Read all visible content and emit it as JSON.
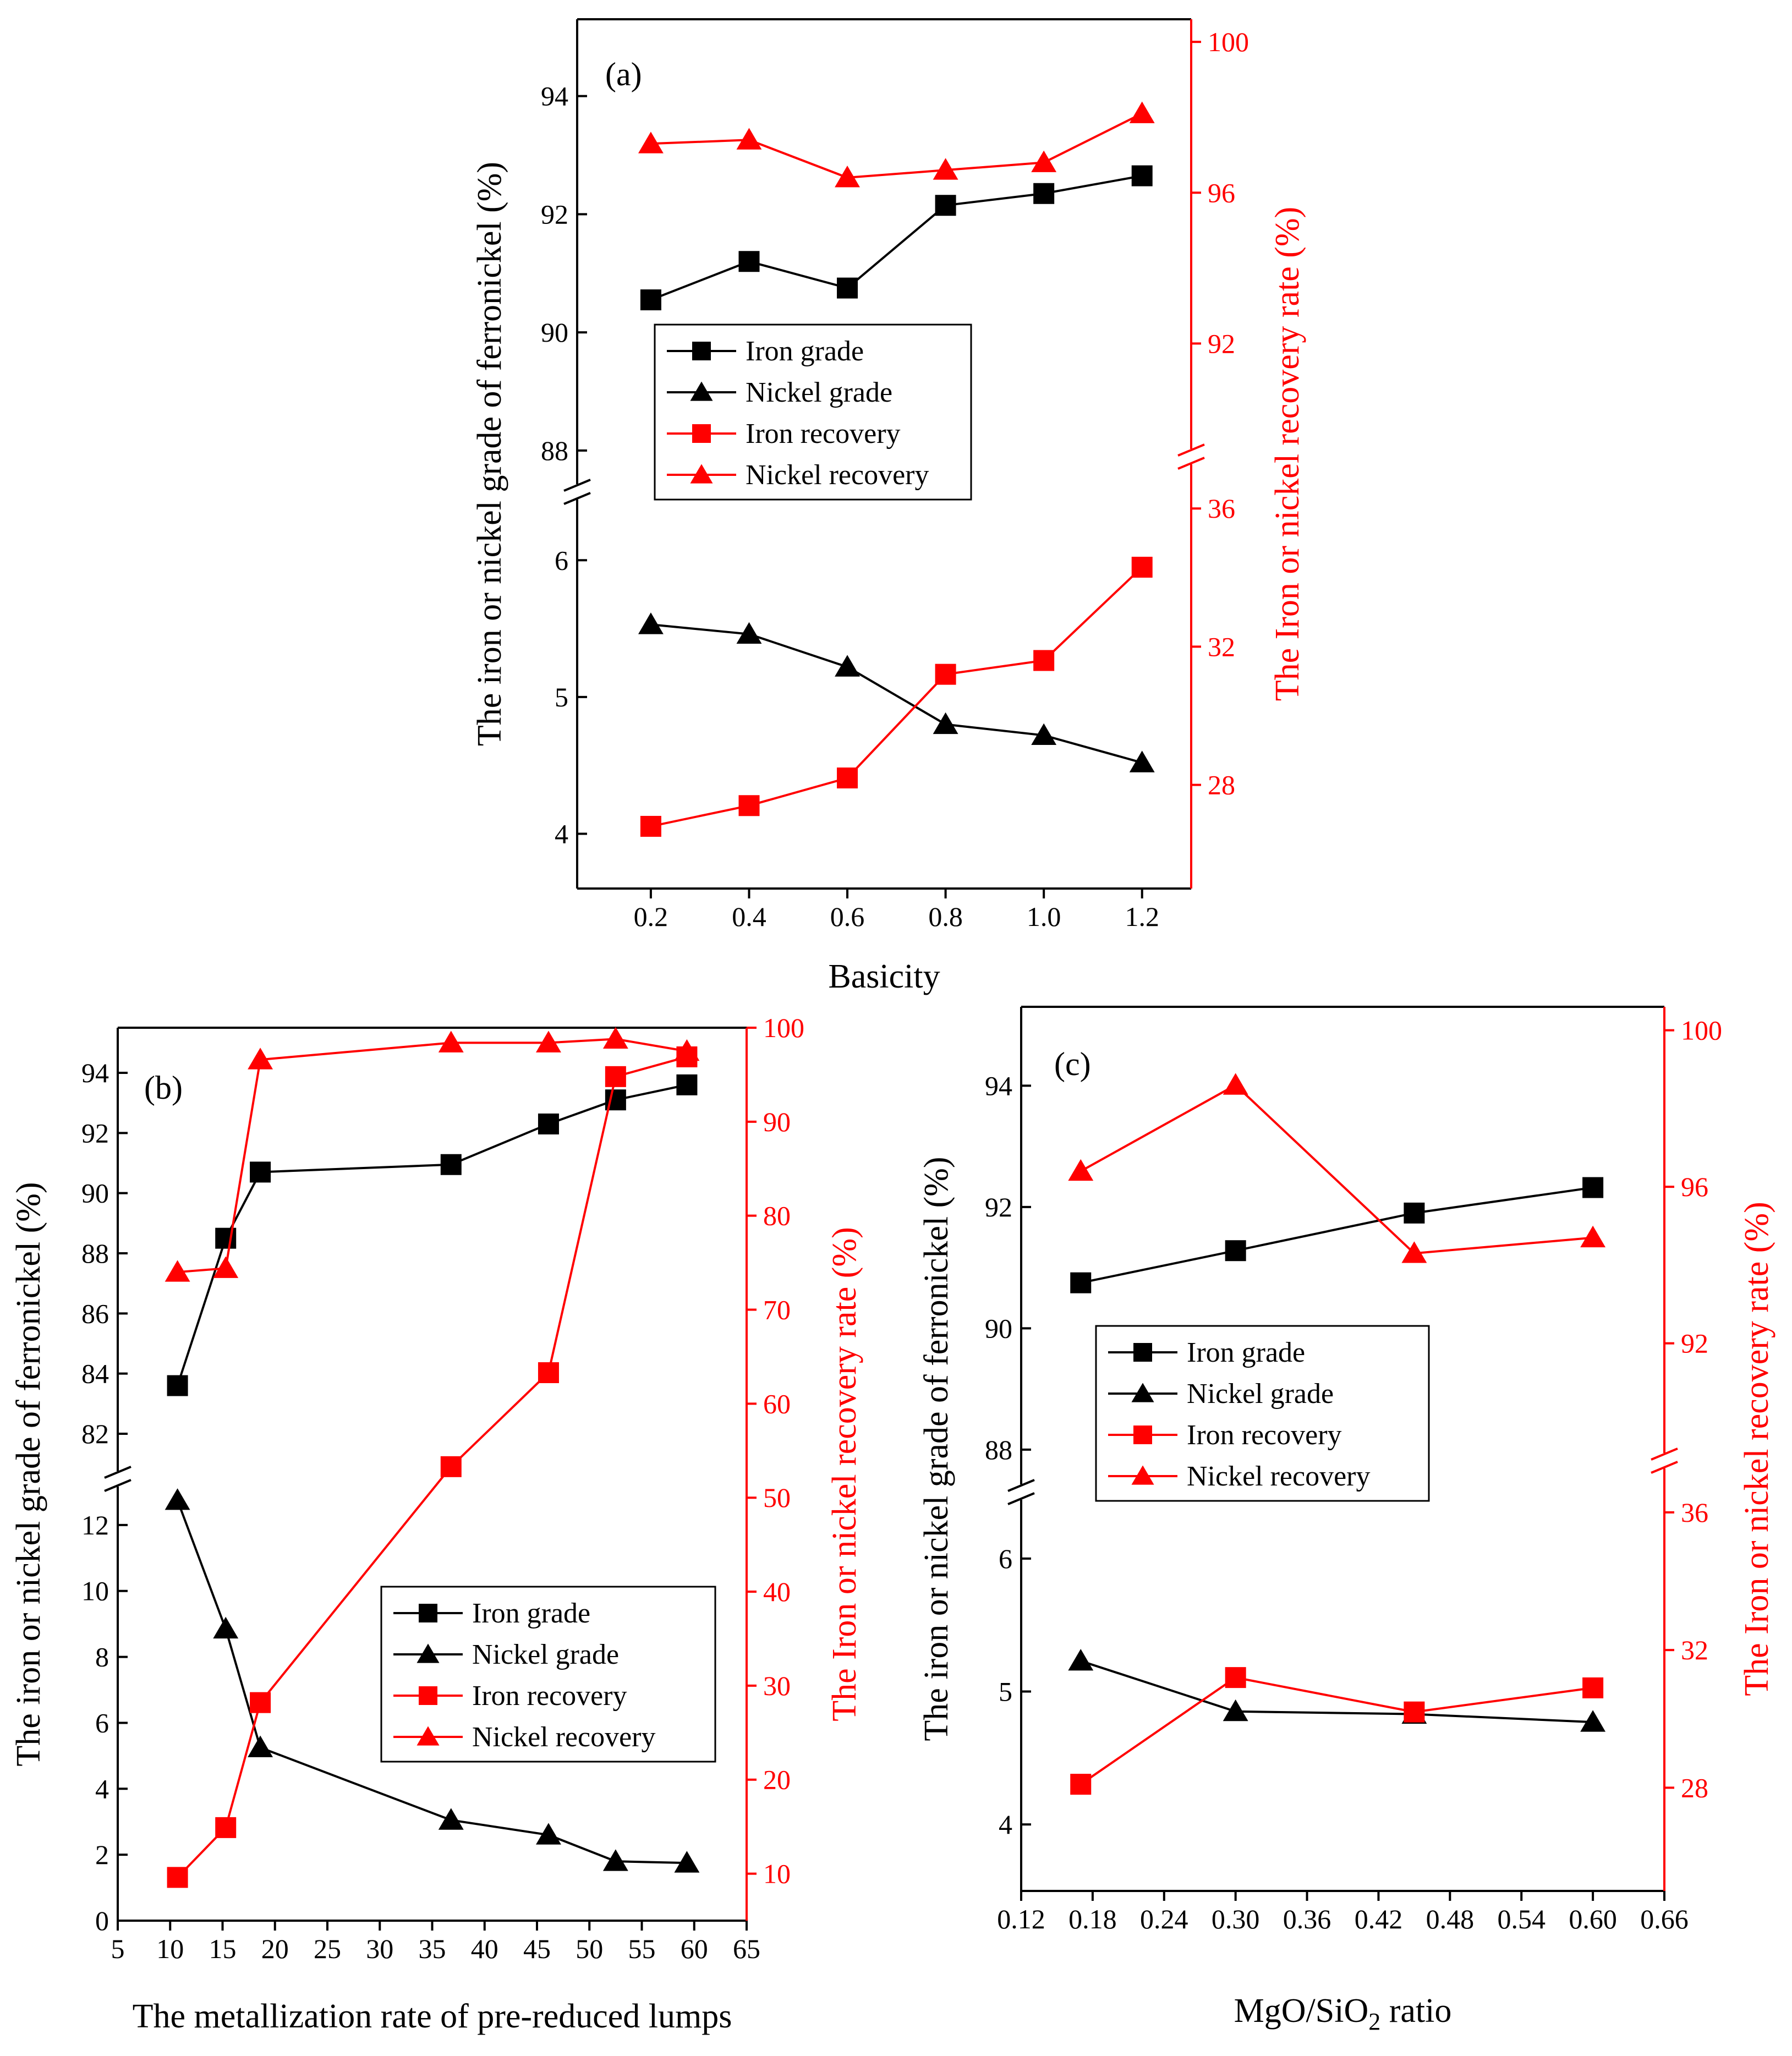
{
  "chart_data": [
    {
      "type": "line",
      "panel_label": "(a)",
      "xlabel": "Basicity",
      "ylabel_left": "The iron or nickel grade of ferronickel (%)",
      "ylabel_right": "The Iron or nickel recovery rate (%)",
      "x": [
        0.2,
        0.4,
        0.6,
        0.8,
        1.0,
        1.2
      ],
      "xlim": [
        0.05,
        1.3
      ],
      "xticks": [
        0.2,
        0.4,
        0.6,
        0.8,
        1.0,
        1.2
      ],
      "xtick_labels": [
        "0.2",
        "0.4",
        "0.6",
        "0.8",
        "1.0",
        "1.2"
      ],
      "y_left_upper": {
        "range": [
          87.3,
          95.3
        ],
        "ticks": [
          88,
          90,
          92,
          94
        ],
        "tick_labels": [
          "88",
          "90",
          "92",
          "94"
        ]
      },
      "y_left_lower": {
        "range": [
          3.6,
          6.5
        ],
        "ticks": [
          4,
          5,
          6
        ],
        "tick_labels": [
          "4",
          "5",
          "6"
        ]
      },
      "y_right_upper": {
        "range": [
          89,
          100.6
        ],
        "ticks": [
          92,
          96,
          100
        ],
        "tick_labels": [
          "92",
          "96",
          "100"
        ]
      },
      "y_right_lower": {
        "range": [
          25,
          37.5
        ],
        "ticks": [
          28,
          32,
          36
        ],
        "tick_labels": [
          "28",
          "32",
          "36"
        ]
      },
      "series": [
        {
          "name": "Iron grade",
          "axis": "left",
          "color": "#000000",
          "marker": "square",
          "values": [
            90.55,
            91.2,
            90.75,
            92.15,
            92.35,
            92.65
          ]
        },
        {
          "name": "Nickel grade",
          "axis": "left",
          "color": "#000000",
          "marker": "triangle",
          "values": [
            5.53,
            5.46,
            5.22,
            4.8,
            4.72,
            4.52
          ]
        },
        {
          "name": "Iron recovery",
          "axis": "right",
          "color": "#ff0000",
          "marker": "square",
          "values": [
            26.8,
            27.4,
            28.2,
            31.2,
            31.6,
            34.3
          ]
        },
        {
          "name": "Nickel recovery",
          "axis": "right",
          "color": "#ff0000",
          "marker": "triangle",
          "values": [
            97.3,
            97.4,
            96.4,
            96.6,
            96.8,
            98.1
          ]
        }
      ],
      "legend": [
        "Iron grade",
        "Nickel grade",
        "Iron recovery",
        "Nickel recovery"
      ],
      "legend_position": "center-left"
    },
    {
      "type": "line",
      "panel_label": "(b)",
      "xlabel": "The metallization rate of pre-reduced lumps",
      "ylabel_left": "The iron or nickel grade of ferronickel (%)",
      "ylabel_right": "The Iron or nickel recovery rate (%)",
      "x": [
        10.7,
        15.3,
        18.6,
        36.8,
        46.1,
        52.5,
        59.3
      ],
      "xlim": [
        5,
        65
      ],
      "xticks": [
        5,
        10,
        15,
        20,
        25,
        30,
        35,
        40,
        45,
        50,
        55,
        60,
        65
      ],
      "xtick_labels": [
        "5",
        "10",
        "15",
        "20",
        "25",
        "30",
        "35",
        "40",
        "45",
        "50",
        "55",
        "60",
        "65"
      ],
      "y_left_upper": {
        "range": [
          80.5,
          95.5
        ],
        "ticks": [
          82,
          84,
          86,
          88,
          90,
          92,
          94
        ],
        "tick_labels": [
          "82",
          "84",
          "86",
          "88",
          "90",
          "92",
          "94"
        ]
      },
      "y_left_lower": {
        "range": [
          0,
          13.4
        ],
        "ticks": [
          0,
          2,
          4,
          6,
          8,
          10,
          12
        ],
        "tick_labels": [
          "0",
          "2",
          "4",
          "6",
          "8",
          "10",
          "12"
        ]
      },
      "y_right": {
        "range": [
          5,
          100
        ],
        "ticks": [
          10,
          20,
          30,
          40,
          50,
          60,
          70,
          80,
          90,
          100
        ],
        "tick_labels": [
          "10",
          "20",
          "30",
          "40",
          "50",
          "60",
          "70",
          "80",
          "90",
          "100"
        ]
      },
      "series": [
        {
          "name": "Iron grade",
          "axis": "left",
          "color": "#000000",
          "marker": "square",
          "values": [
            83.6,
            88.5,
            90.7,
            90.95,
            92.3,
            93.1,
            93.6
          ]
        },
        {
          "name": "Nickel grade",
          "axis": "left",
          "color": "#000000",
          "marker": "triangle",
          "values": [
            12.75,
            8.85,
            5.25,
            3.05,
            2.6,
            1.8,
            1.75
          ]
        },
        {
          "name": "Iron recovery",
          "axis": "right",
          "color": "#ff0000",
          "marker": "square",
          "values": [
            9.6,
            14.9,
            28.2,
            53.3,
            63.3,
            94.8,
            96.9
          ]
        },
        {
          "name": "Nickel recovery",
          "axis": "right",
          "color": "#ff0000",
          "marker": "triangle",
          "values": [
            74.0,
            74.4,
            96.6,
            98.4,
            98.4,
            98.8,
            97.5
          ]
        }
      ],
      "legend": [
        "Iron grade",
        "Nickel grade",
        "Iron recovery",
        "Nickel recovery"
      ],
      "legend_position": "center-right"
    },
    {
      "type": "line",
      "panel_label": "(c)",
      "xlabel": "MgO/SiO2 ratio",
      "ylabel_left": "The iron or nickel grade of ferronickel (%)",
      "ylabel_right": "The Iron or nickel recovery rate (%)",
      "x": [
        0.17,
        0.3,
        0.45,
        0.6
      ],
      "xlim": [
        0.12,
        0.66
      ],
      "xticks": [
        0.12,
        0.18,
        0.24,
        0.3,
        0.36,
        0.42,
        0.48,
        0.54,
        0.6,
        0.66
      ],
      "xtick_labels": [
        "0.12",
        "0.18",
        "0.24",
        "0.30",
        "0.36",
        "0.42",
        "0.48",
        "0.54",
        "0.60",
        "0.66"
      ],
      "y_left_upper": {
        "range": [
          87.3,
          95.3
        ],
        "ticks": [
          88,
          90,
          92,
          94
        ],
        "tick_labels": [
          "88",
          "90",
          "92",
          "94"
        ]
      },
      "y_left_lower": {
        "range": [
          3.5,
          6.5
        ],
        "ticks": [
          4,
          5,
          6
        ],
        "tick_labels": [
          "4",
          "5",
          "6"
        ]
      },
      "y_right_upper": {
        "range": [
          89,
          100.6
        ],
        "ticks": [
          92,
          96,
          100
        ],
        "tick_labels": [
          "92",
          "96",
          "100"
        ]
      },
      "y_right_lower": {
        "range": [
          25,
          37.5
        ],
        "ticks": [
          28,
          32,
          36
        ],
        "tick_labels": [
          "28",
          "32",
          "36"
        ]
      },
      "series": [
        {
          "name": "Iron grade",
          "axis": "left",
          "color": "#000000",
          "marker": "square",
          "values": [
            90.75,
            91.28,
            91.9,
            92.32
          ]
        },
        {
          "name": "Nickel grade",
          "axis": "left",
          "color": "#000000",
          "marker": "triangle",
          "values": [
            5.23,
            4.85,
            4.83,
            4.77
          ]
        },
        {
          "name": "Iron recovery",
          "axis": "right",
          "color": "#ff0000",
          "marker": "square",
          "values": [
            28.1,
            31.2,
            30.2,
            30.9
          ]
        },
        {
          "name": "Nickel recovery",
          "axis": "right",
          "color": "#ff0000",
          "marker": "triangle",
          "values": [
            96.4,
            98.6,
            94.3,
            94.7
          ]
        }
      ],
      "legend": [
        "Iron grade",
        "Nickel grade",
        "Iron recovery",
        "Nickel recovery"
      ],
      "legend_position": "center-left"
    }
  ]
}
